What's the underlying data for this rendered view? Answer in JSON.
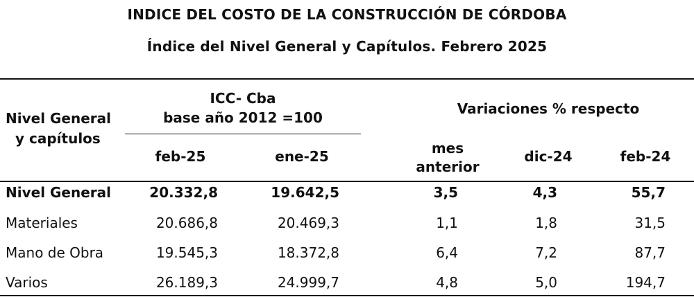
{
  "title": "INDICE DEL COSTO DE LA CONSTRUCCIÓN DE CÓRDOBA",
  "subtitle": "Índice del Nivel General y Capítulos.  Febrero 2025",
  "header": {
    "row_label_1": "Nivel General",
    "row_label_2": "y capítulos",
    "icc_1": "ICC- Cba",
    "icc_2": "base año 2012 =100",
    "variations": "Variaciones % respecto",
    "col_feb25": "feb-25",
    "col_ene25": "ene-25",
    "col_mes_1": "mes",
    "col_mes_2": "anterior",
    "col_dic24": "dic-24",
    "col_feb24": "feb-24"
  },
  "rows": [
    {
      "label": "Nivel General",
      "feb25": "20.332,8",
      "ene25": "19.642,5",
      "mes": "3,5",
      "dic24": "4,3",
      "feb24": "55,7"
    },
    {
      "label": "Materiales",
      "feb25": "20.686,8",
      "ene25": "20.469,3",
      "mes": "1,1",
      "dic24": "1,8",
      "feb24": "31,5"
    },
    {
      "label": "Mano de Obra",
      "feb25": "19.545,3",
      "ene25": "18.372,8",
      "mes": "6,4",
      "dic24": "7,2",
      "feb24": "87,7"
    },
    {
      "label": "Varios",
      "feb25": "26.189,3",
      "ene25": "24.999,7",
      "mes": "4,8",
      "dic24": "5,0",
      "feb24": "194,7"
    }
  ]
}
